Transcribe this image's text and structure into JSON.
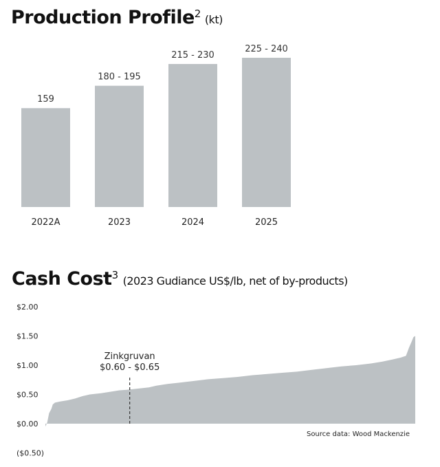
{
  "chart_data": [
    {
      "type": "bar",
      "title": "Production Profile",
      "title_sup": "2",
      "title_unit": "(kt)",
      "categories": [
        "2022A",
        "2023",
        "2024",
        "2025"
      ],
      "values": [
        159,
        195,
        230,
        240
      ],
      "value_labels": [
        "159",
        "180 - 195",
        "215 - 230",
        "225 - 240"
      ],
      "ylim": [
        0,
        240
      ],
      "bar_color": "#bcc1c4",
      "grid": false
    },
    {
      "type": "area",
      "title": "Cash Cost",
      "title_sup": "3",
      "subtitle": "(2023 Gudiance US$/lb, net of by-products)",
      "ytick_labels": [
        "$2.00",
        "$1.50",
        "$1.00",
        "$0.50",
        "$0.00",
        "($0.50)"
      ],
      "ytick_values": [
        2.0,
        1.5,
        1.0,
        0.5,
        0.0,
        -0.5
      ],
      "ylim": [
        -0.5,
        2.0
      ],
      "x_range": [
        0,
        1
      ],
      "curve": [
        [
          0.0,
          -0.05
        ],
        [
          0.005,
          0.02
        ],
        [
          0.01,
          0.18
        ],
        [
          0.016,
          0.25
        ],
        [
          0.02,
          0.33
        ],
        [
          0.026,
          0.36
        ],
        [
          0.04,
          0.38
        ],
        [
          0.06,
          0.4
        ],
        [
          0.08,
          0.43
        ],
        [
          0.1,
          0.47
        ],
        [
          0.12,
          0.5
        ],
        [
          0.15,
          0.52
        ],
        [
          0.18,
          0.55
        ],
        [
          0.2,
          0.57
        ],
        [
          0.22,
          0.58
        ],
        [
          0.25,
          0.6
        ],
        [
          0.28,
          0.62
        ],
        [
          0.3,
          0.65
        ],
        [
          0.33,
          0.68
        ],
        [
          0.36,
          0.7
        ],
        [
          0.4,
          0.73
        ],
        [
          0.44,
          0.76
        ],
        [
          0.48,
          0.78
        ],
        [
          0.52,
          0.8
        ],
        [
          0.56,
          0.83
        ],
        [
          0.6,
          0.85
        ],
        [
          0.64,
          0.87
        ],
        [
          0.68,
          0.89
        ],
        [
          0.72,
          0.92
        ],
        [
          0.76,
          0.95
        ],
        [
          0.8,
          0.98
        ],
        [
          0.84,
          1.0
        ],
        [
          0.88,
          1.03
        ],
        [
          0.91,
          1.06
        ],
        [
          0.94,
          1.1
        ],
        [
          0.96,
          1.13
        ],
        [
          0.975,
          1.16
        ],
        [
          0.983,
          1.3
        ],
        [
          0.99,
          1.4
        ],
        [
          0.995,
          1.48
        ],
        [
          1.0,
          1.5
        ]
      ],
      "annotation": {
        "name": "Zinkgruvan",
        "range_label": "$0.60 - $0.65",
        "x": 0.228
      },
      "source_note": "Source data: Wood Mackenzie",
      "area_color": "#bcc1c4",
      "grid": false
    }
  ]
}
